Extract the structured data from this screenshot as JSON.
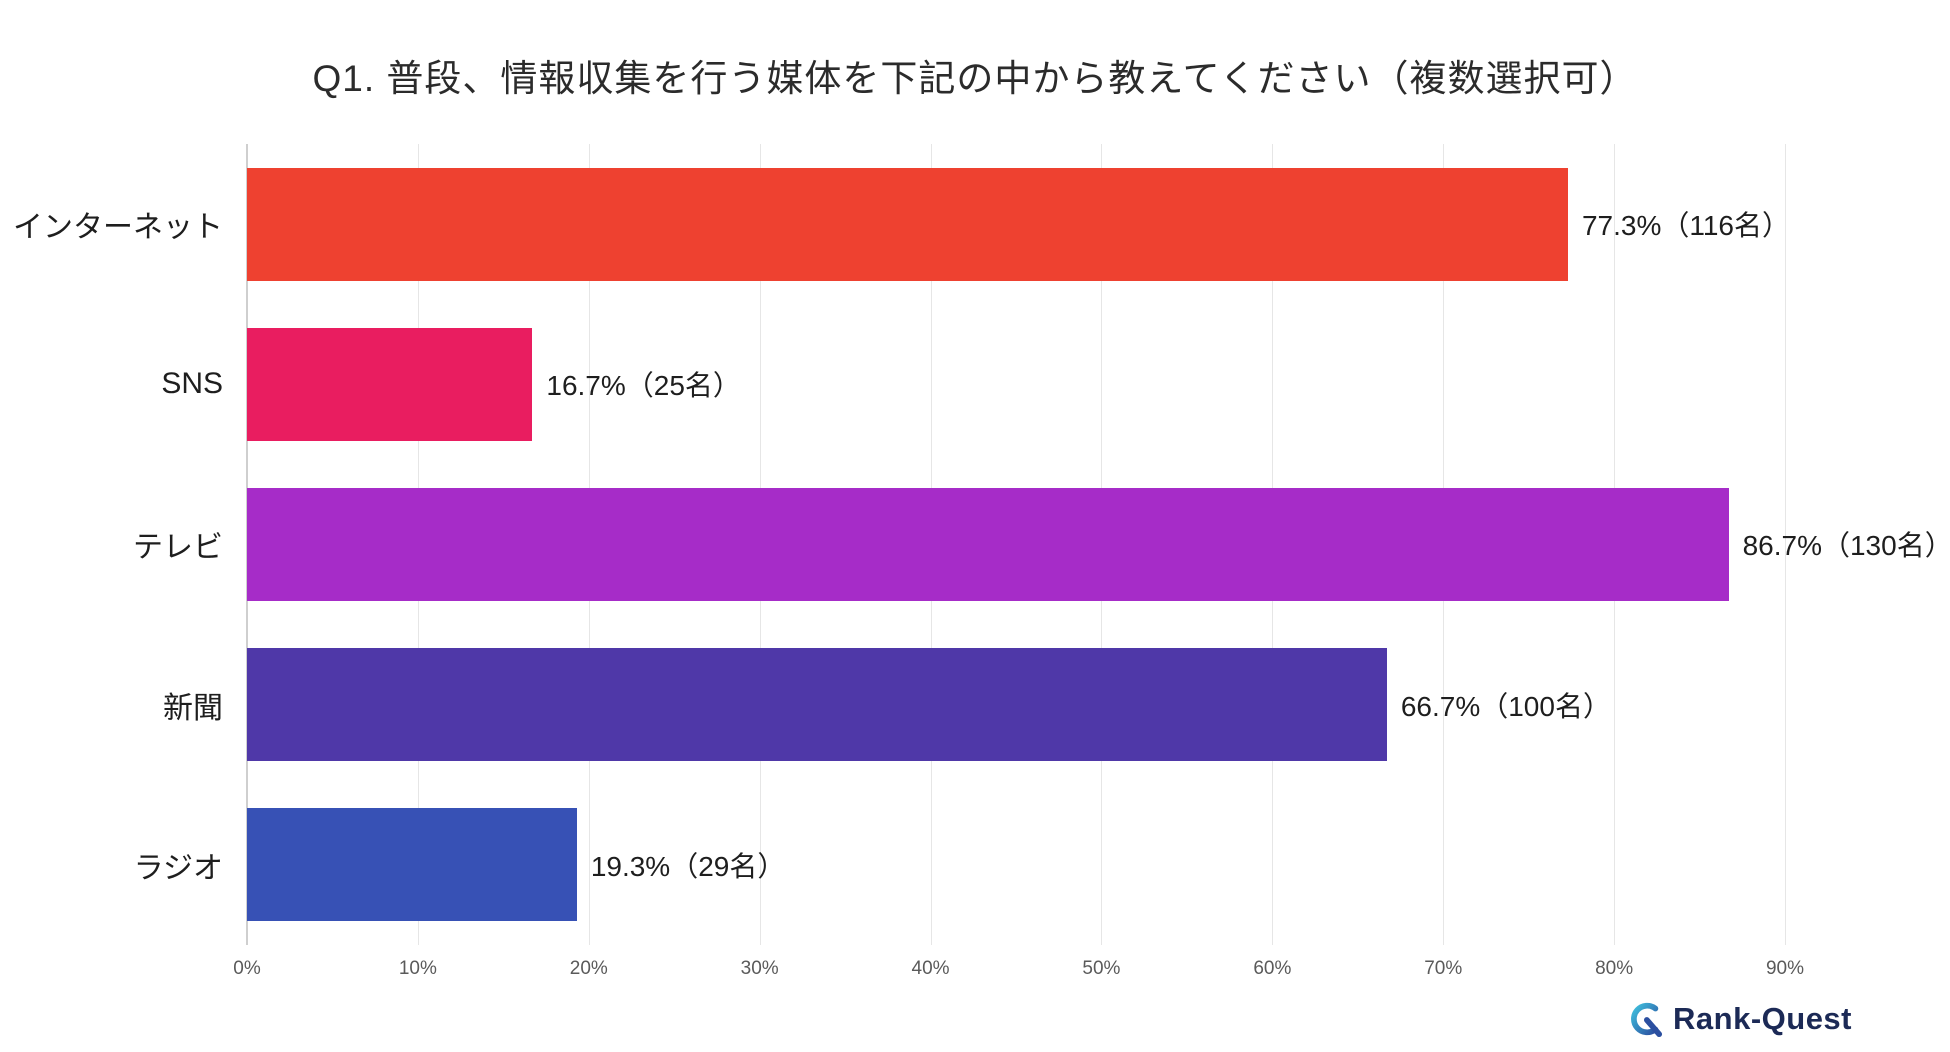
{
  "chart_data": {
    "type": "bar",
    "orientation": "horizontal",
    "title": "Q1. 普段、情報収集を行う媒体を下記の中から教えてください（複数選択可）",
    "categories": [
      "インターネット",
      "SNS",
      "テレビ",
      "新聞",
      "ラジオ"
    ],
    "values": [
      77.3,
      16.7,
      86.7,
      66.7,
      19.3
    ],
    "counts": [
      116,
      25,
      130,
      100,
      29
    ],
    "value_labels": [
      "77.3%（116名）",
      "16.7%（25名）",
      "86.7%（130名）",
      "66.7%（100名）",
      "19.3%（29名）"
    ],
    "bar_colors": [
      "#ee4130",
      "#e91d60",
      "#a62cc8",
      "#4f38a8",
      "#3751b5"
    ],
    "xlim": [
      0,
      90
    ],
    "x_ticks": [
      "0%",
      "10%",
      "20%",
      "30%",
      "40%",
      "50%",
      "60%",
      "70%",
      "80%",
      "90%"
    ],
    "grid": true,
    "legend": false
  },
  "footer": {
    "brand": "Rank-Quest"
  }
}
